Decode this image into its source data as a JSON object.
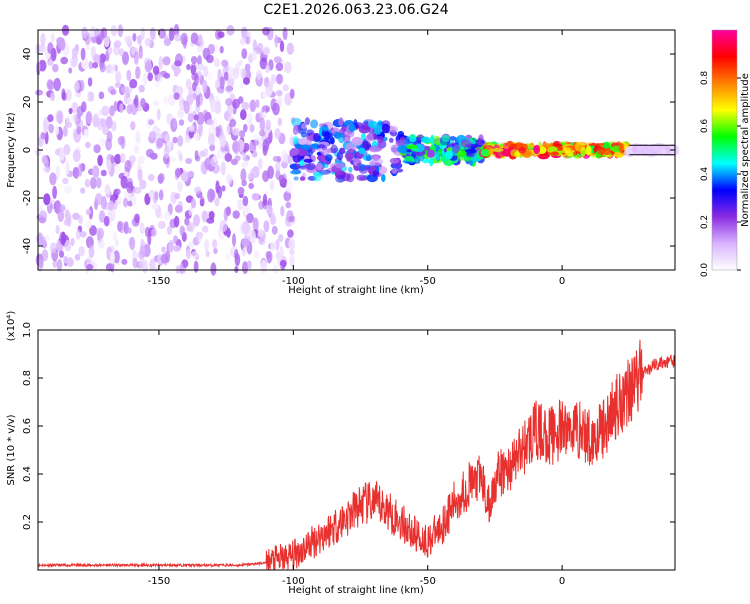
{
  "title": "C2E1.2026.063.23.06.G24",
  "colors": {
    "signal": "#e8302e",
    "frame": "#000000",
    "background": "#ffffff"
  },
  "chart_data": [
    {
      "type": "heatmap",
      "xlabel": "Height of straight line (km)",
      "ylabel": "Frequency (Hz)",
      "xlim": [
        -195,
        42
      ],
      "ylim": [
        -50,
        50
      ],
      "x_ticks": [
        -150,
        -100,
        -50,
        0
      ],
      "x_tick_labels": [
        "-150",
        "-100",
        "-50",
        "0"
      ],
      "y_ticks": [
        -40,
        -20,
        0,
        20,
        40
      ],
      "y_tick_labels": [
        "-40",
        "-20",
        "0",
        "20",
        "40"
      ],
      "grid": false,
      "colorbar": {
        "label": "Normalized spectral amplitude",
        "range": [
          0.0,
          1.0
        ],
        "ticks": [
          0.0,
          0.2,
          0.4,
          0.6,
          0.8
        ],
        "tick_labels": [
          "0.0",
          "0.2",
          "0.4",
          "0.6",
          "0.8"
        ],
        "colormap": [
          "#ffffff",
          "#d9b3ff",
          "#8a2be2",
          "#0000ff",
          "#00ffff",
          "#00ff00",
          "#ffff00",
          "#ff8000",
          "#ff0000",
          "#ff00a0"
        ]
      },
      "regions": [
        {
          "x": [
            -195,
            -100
          ],
          "freq_spread": 50,
          "amplitude": [
            0.02,
            0.2
          ]
        },
        {
          "x": [
            -100,
            -60
          ],
          "freq_spread": 12,
          "amplitude": [
            0.1,
            0.45
          ]
        },
        {
          "x": [
            -60,
            -30
          ],
          "freq_spread": 5,
          "amplitude": [
            0.2,
            0.6
          ]
        },
        {
          "x": [
            -30,
            25
          ],
          "freq_spread": 2,
          "amplitude": [
            0.5,
            1.0
          ]
        },
        {
          "x": [
            25,
            42
          ],
          "freq_spread": 1,
          "amplitude": [
            0.05,
            0.1
          ]
        }
      ],
      "centerline_hz": 0,
      "centerline_band_hz": [
        -2,
        2
      ]
    },
    {
      "type": "line",
      "xlabel": "Height of straight line (km)",
      "ylabel": "SNR (10 * v/v)",
      "scale_label": "(x10⁴)",
      "xlim": [
        -195,
        42
      ],
      "ylim": [
        0,
        1.0
      ],
      "x_ticks": [
        -150,
        -100,
        -50,
        0
      ],
      "x_tick_labels": [
        "-150",
        "-100",
        "-50",
        "0"
      ],
      "y_ticks": [
        0.2,
        0.4,
        0.6,
        0.8,
        1.0
      ],
      "y_tick_labels": [
        "0.2",
        "0.4",
        "0.6",
        "0.8",
        "1.0"
      ],
      "grid": false,
      "series": [
        {
          "color": "#e8302e",
          "x": [
            -195,
            -180,
            -160,
            -140,
            -120,
            -110,
            -100,
            -95,
            -90,
            -85,
            -80,
            -75,
            -70,
            -65,
            -60,
            -55,
            -50,
            -45,
            -40,
            -35,
            -30,
            -27,
            -25,
            -20,
            -15,
            -10,
            -5,
            0,
            5,
            10,
            15,
            20,
            25,
            30,
            35,
            42
          ],
          "y": [
            0.02,
            0.02,
            0.02,
            0.02,
            0.02,
            0.03,
            0.06,
            0.1,
            0.14,
            0.18,
            0.22,
            0.27,
            0.28,
            0.25,
            0.2,
            0.15,
            0.12,
            0.18,
            0.28,
            0.35,
            0.38,
            0.25,
            0.38,
            0.42,
            0.5,
            0.58,
            0.56,
            0.58,
            0.6,
            0.55,
            0.58,
            0.68,
            0.76,
            0.82,
            0.86,
            0.87
          ]
        }
      ]
    }
  ]
}
